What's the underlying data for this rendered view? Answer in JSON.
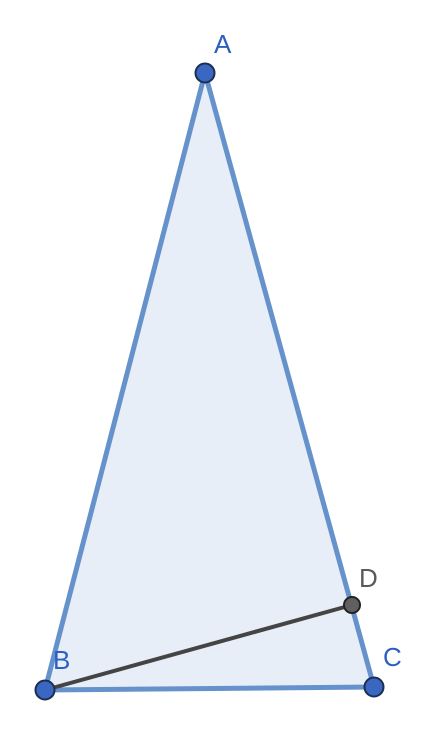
{
  "diagram": {
    "points": {
      "A": {
        "label": "A"
      },
      "B": {
        "label": "B"
      },
      "C": {
        "label": "C"
      },
      "D": {
        "label": "D"
      }
    },
    "colors": {
      "triangle_fill": "#e8eef8",
      "triangle_stroke": "#6692cc",
      "vertex_fill": "#3a67c2",
      "vertex_stroke": "#1c2e52",
      "label_blue": "#2c5fbe",
      "segment_bd": "#444444",
      "point_d_fill": "#606060",
      "label_gray": "#5a5a5a"
    }
  }
}
